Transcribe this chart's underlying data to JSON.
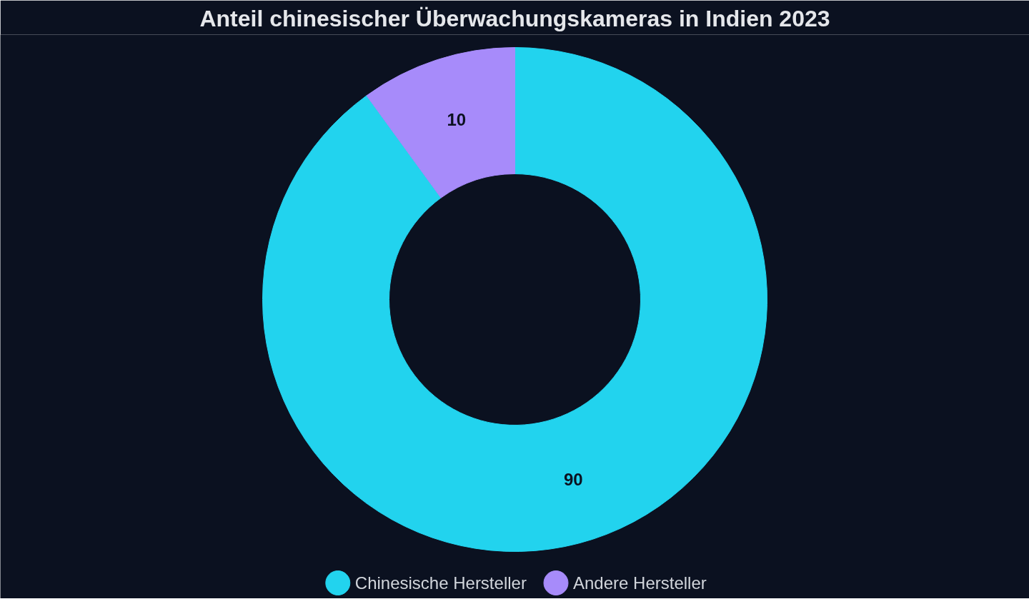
{
  "chart_data": {
    "type": "donut",
    "title": "Anteil chinesischer Überwachungskameras in Indien 2023",
    "categories": [
      "Chinesische Hersteller",
      "Andere Hersteller"
    ],
    "values": [
      90,
      10
    ],
    "colors": [
      "#22d3ee",
      "#a78bfa"
    ],
    "data_labels": true,
    "legend": "bottom"
  }
}
